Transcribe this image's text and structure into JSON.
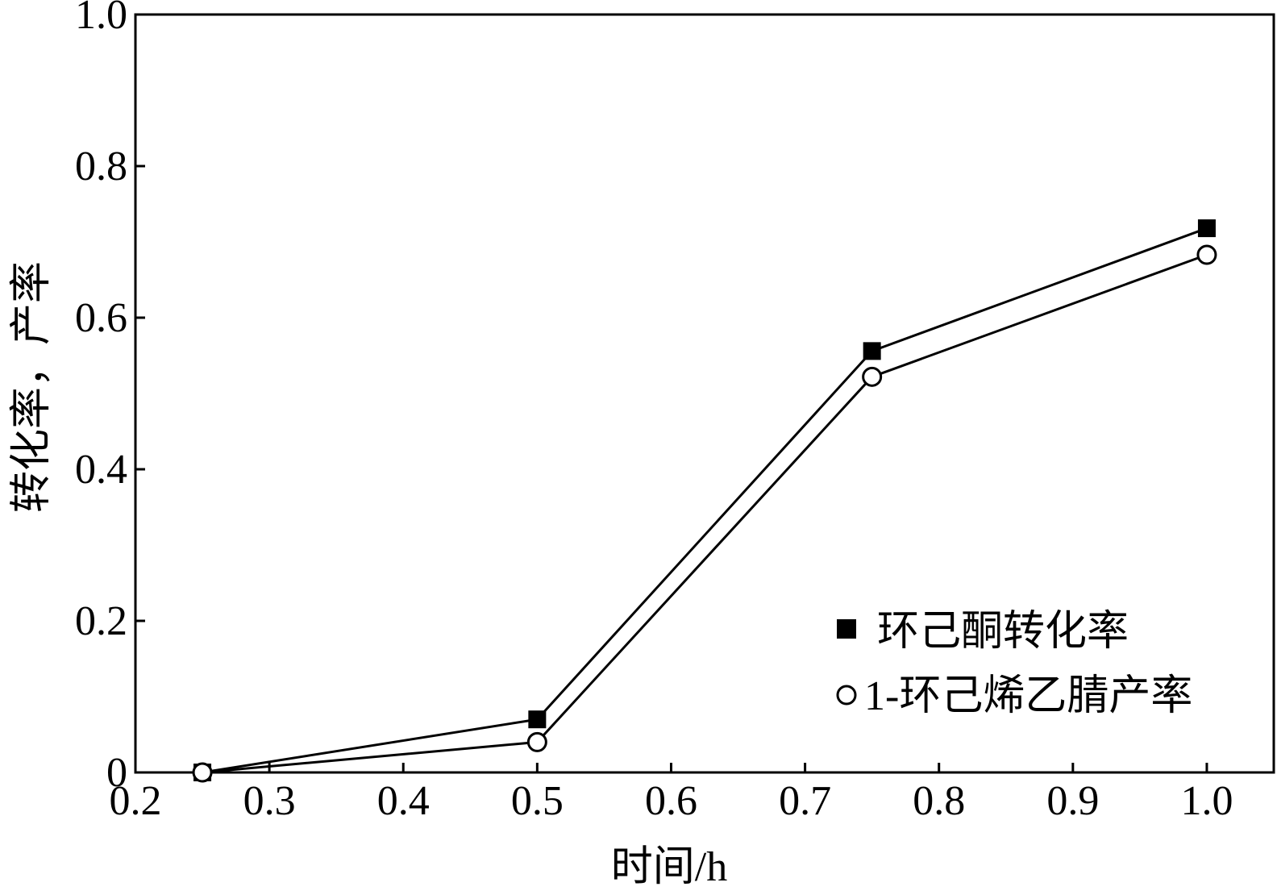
{
  "chart_data": {
    "type": "line",
    "title": "",
    "xlabel": "时间/h",
    "ylabel": "转化率，产率",
    "xlim": [
      0.2,
      1.05
    ],
    "ylim": [
      0,
      1.0
    ],
    "x_ticks": [
      "0.2",
      "0.3",
      "0.4",
      "0.5",
      "0.6",
      "0.7",
      "0.8",
      "0.9",
      "1.0"
    ],
    "y_ticks": [
      "0",
      "0.2",
      "0.4",
      "0.6",
      "0.8",
      "1.0"
    ],
    "grid": false,
    "legend_position": "bottom-right",
    "x": [
      0.25,
      0.5,
      0.75,
      1.0
    ],
    "series": [
      {
        "name": "环己酮转化率",
        "marker": "filled-square",
        "color": "#000000",
        "values": [
          0.0,
          0.07,
          0.556,
          0.718
        ]
      },
      {
        "name": "1-环己烯乙腈产率",
        "marker": "open-circle",
        "color": "#000000",
        "values": [
          0.0,
          0.04,
          0.522,
          0.683
        ]
      }
    ]
  }
}
